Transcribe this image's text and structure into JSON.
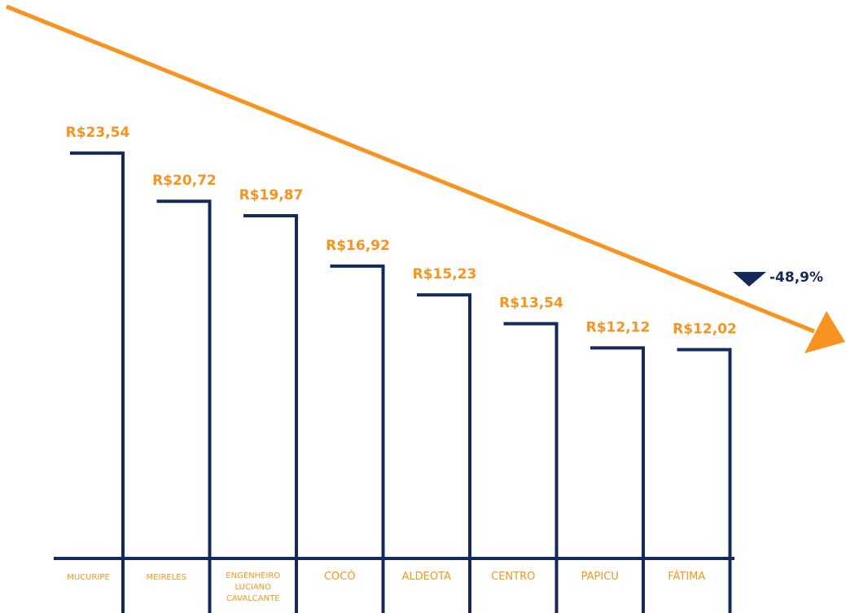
{
  "colors": {
    "accent": "#F7931E",
    "bars": "#152A5C",
    "background": "#FFFFFF"
  },
  "chart_data": {
    "type": "bar",
    "categories": [
      "MUCURIPE",
      "MEIRELES",
      "ENGENHEIRO LUCIANO CAVALCANTE",
      "COCÓ",
      "ALDEOTA",
      "CENTRO",
      "PAPICU",
      "FÁTIMA"
    ],
    "values": [
      23.54,
      20.72,
      19.87,
      16.92,
      15.23,
      13.54,
      12.12,
      12.02
    ],
    "value_labels": [
      "R$23,54",
      "R$20,72",
      "R$19,87",
      "R$16,92",
      "R$15,23",
      "R$13,54",
      "R$12,12",
      "R$12,02"
    ],
    "trend": {
      "direction": "down",
      "change_label": "-48,9%",
      "icon": "triangle-down-icon"
    },
    "title": "",
    "xlabel": "",
    "ylabel": "",
    "grid": false,
    "legend": "none"
  }
}
